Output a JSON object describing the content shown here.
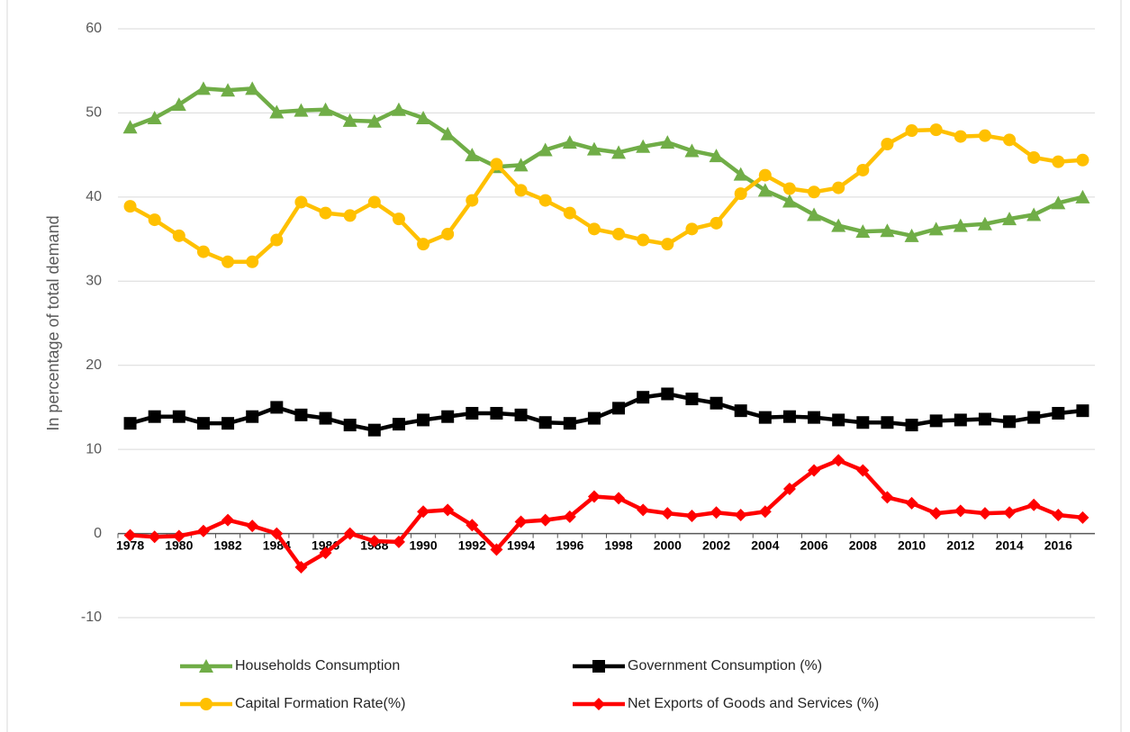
{
  "chart_data": {
    "type": "line",
    "y_label": "In percentage of total demand",
    "categories": [
      "1978",
      null,
      "1980",
      null,
      "1982",
      null,
      "1984",
      null,
      "1986",
      null,
      "1988",
      null,
      "1990",
      null,
      "1992",
      null,
      "1994",
      null,
      "1996",
      null,
      "1998",
      null,
      "2000",
      null,
      "2002",
      null,
      "2004",
      null,
      "2006",
      null,
      "2008",
      null,
      "2010",
      null,
      "2012",
      null,
      "2014",
      null,
      "2016",
      null
    ],
    "series": [
      {
        "name": "Households Consumption",
        "color": "#70ad47",
        "marker": "triangle",
        "values": [
          48.3,
          49.4,
          51,
          52.9,
          52.7,
          52.9,
          50.1,
          50.3,
          50.4,
          49.1,
          49,
          50.4,
          49.4,
          47.5,
          45,
          43.6,
          43.8,
          45.6,
          46.5,
          45.7,
          45.3,
          46,
          46.5,
          45.5,
          44.9,
          42.7,
          40.8,
          39.5,
          37.9,
          36.6,
          35.9,
          36,
          35.4,
          36.2,
          36.6,
          36.8,
          37.4,
          37.9,
          39.3,
          40
        ]
      },
      {
        "name": "Government Consumption (%)",
        "color": "#000000",
        "marker": "square",
        "values": [
          13.1,
          13.9,
          13.9,
          13.1,
          13.1,
          13.9,
          15,
          14.1,
          13.7,
          12.9,
          12.3,
          13,
          13.5,
          13.9,
          14.3,
          14.3,
          14.1,
          13.2,
          13.1,
          13.7,
          14.9,
          16.2,
          16.6,
          16,
          15.5,
          14.6,
          13.8,
          13.9,
          13.8,
          13.5,
          13.2,
          13.2,
          12.9,
          13.4,
          13.5,
          13.6,
          13.3,
          13.8,
          14.3,
          14.6
        ]
      },
      {
        "name": "Capital Formation Rate(%)",
        "color": "#ffc000",
        "marker": "circle",
        "values": [
          38.9,
          37.3,
          35.4,
          33.5,
          32.3,
          32.3,
          34.9,
          39.4,
          38.1,
          37.8,
          39.4,
          37.4,
          34.4,
          35.6,
          39.6,
          43.9,
          40.8,
          39.6,
          38.1,
          36.2,
          35.6,
          34.9,
          34.4,
          36.2,
          36.9,
          40.4,
          42.6,
          41,
          40.6,
          41.1,
          43.2,
          46.3,
          47.9,
          48,
          47.2,
          47.3,
          46.8,
          44.7,
          44.2,
          44.4
        ]
      },
      {
        "name": "Net Exports of Goods and Services (%)",
        "color": "#ff0000",
        "marker": "diamond",
        "values": [
          -0.2,
          -0.4,
          -0.3,
          0.3,
          1.6,
          0.9,
          0,
          -4,
          -2.3,
          0,
          -0.9,
          -1,
          2.6,
          2.8,
          1,
          -1.9,
          1.4,
          1.6,
          2,
          4.4,
          4.2,
          2.8,
          2.4,
          2.1,
          2.5,
          2.2,
          2.6,
          5.3,
          7.5,
          8.7,
          7.5,
          4.3,
          3.6,
          2.4,
          2.7,
          2.4,
          2.5,
          3.4,
          2.2,
          1.9
        ]
      }
    ],
    "ylim": [
      -10,
      60
    ],
    "yticks": [
      -10,
      0,
      10,
      20,
      30,
      40,
      50,
      60
    ],
    "grid": true
  }
}
